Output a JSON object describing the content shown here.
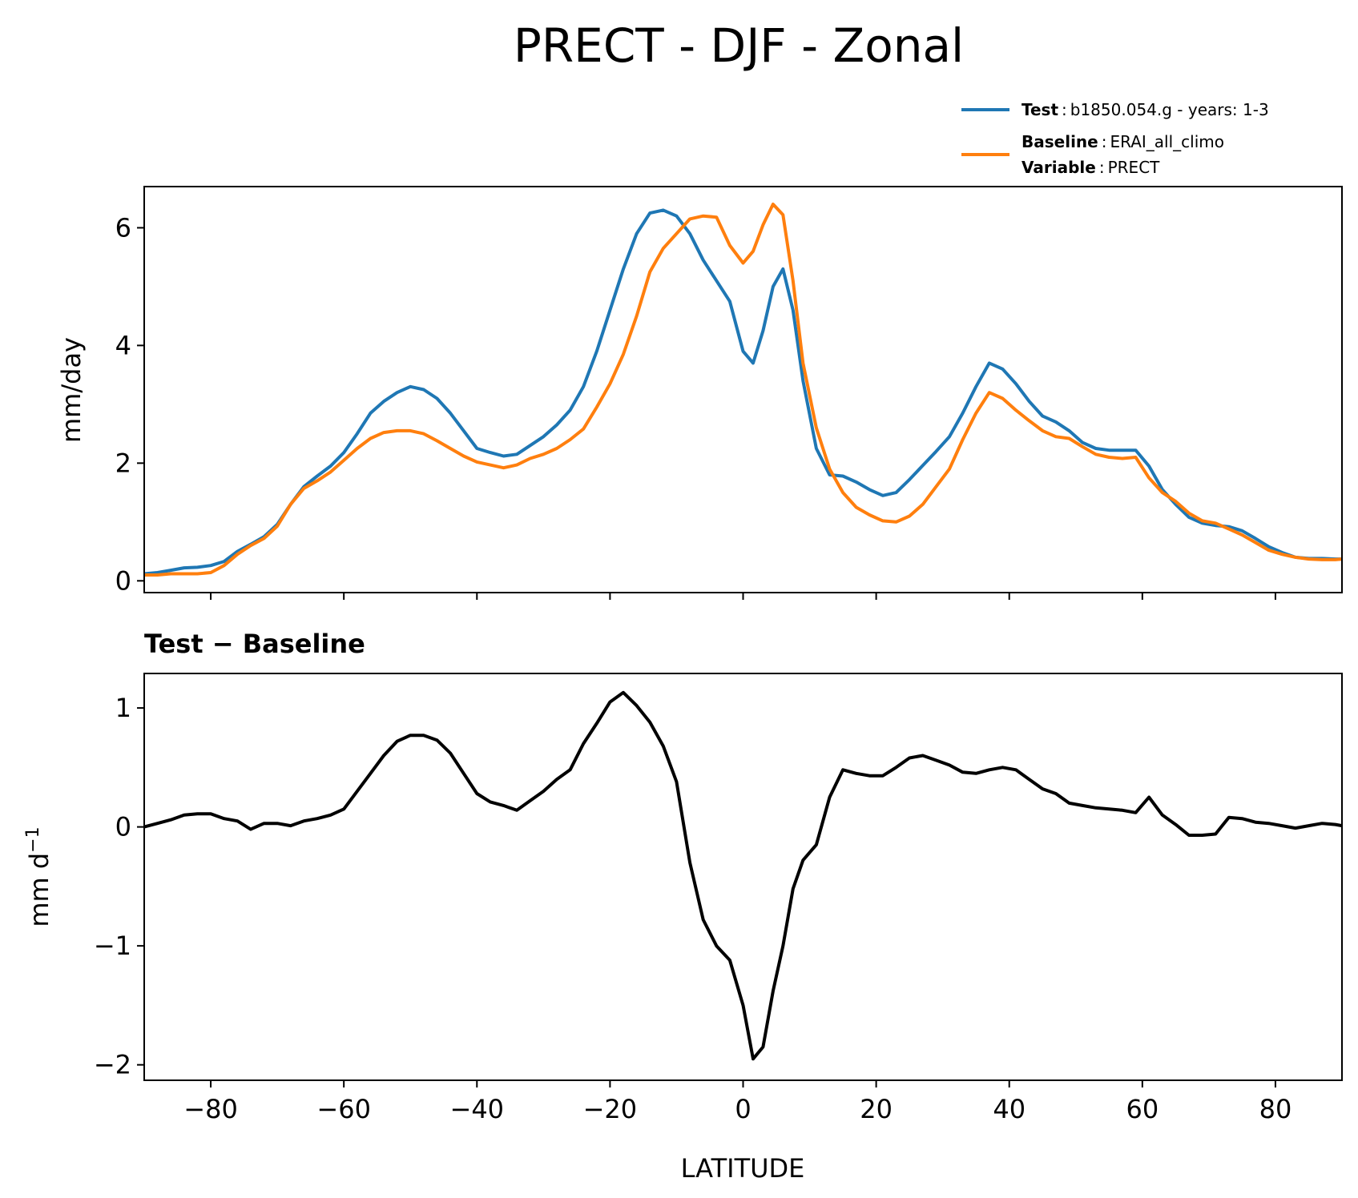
{
  "chart_data": [
    {
      "type": "line",
      "title": "PRECT - DJF - Zonal",
      "xlabel": "",
      "ylabel": "mm/day",
      "xlim": [
        -90,
        90
      ],
      "ylim": [
        -0.2,
        6.7
      ],
      "xticks": [
        -80,
        -60,
        -40,
        -20,
        0,
        20,
        40,
        60,
        80
      ],
      "yticks": [
        0,
        2,
        4,
        6
      ],
      "ytick_labels": [
        "0",
        "2",
        "4",
        "6"
      ],
      "legend": {
        "placement": "upper-right-outside",
        "test": {
          "bold": "Test",
          "sep": ":",
          "text": "b1850.054.g - years: 1-3"
        },
        "baseline": {
          "bold": "Baseline",
          "sep": ":",
          "text": "ERAI_all_climo"
        },
        "variable": {
          "bold": "Variable",
          "sep": ":",
          "text": "PRECT"
        }
      },
      "series": [
        {
          "name": "Test",
          "color": "#1f77b4",
          "x": [
            -90,
            -88,
            -86,
            -84,
            -82,
            -80,
            -78,
            -76,
            -74,
            -72,
            -70,
            -68,
            -66,
            -64,
            -62,
            -60,
            -58,
            -56,
            -54,
            -52,
            -50,
            -48,
            -46,
            -44,
            -42,
            -40,
            -38,
            -36,
            -34,
            -32,
            -30,
            -28,
            -26,
            -24,
            -22,
            -20,
            -18,
            -16,
            -14,
            -12,
            -10,
            -8,
            -6,
            -4,
            -2,
            0,
            1.5,
            3,
            4.5,
            6,
            7.5,
            9,
            11,
            13,
            15,
            17,
            19,
            21,
            23,
            25,
            27,
            29,
            31,
            33,
            35,
            37,
            39,
            41,
            43,
            45,
            47,
            49,
            51,
            53,
            55,
            57,
            59,
            61,
            63,
            65,
            67,
            69,
            71,
            73,
            75,
            77,
            79,
            81,
            83,
            85,
            87,
            89,
            90
          ],
          "values": [
            0.12,
            0.14,
            0.18,
            0.22,
            0.23,
            0.26,
            0.33,
            0.5,
            0.62,
            0.75,
            0.96,
            1.3,
            1.6,
            1.78,
            1.95,
            2.18,
            2.5,
            2.85,
            3.05,
            3.2,
            3.3,
            3.25,
            3.1,
            2.85,
            2.55,
            2.25,
            2.18,
            2.12,
            2.15,
            2.3,
            2.45,
            2.65,
            2.9,
            3.3,
            3.9,
            4.6,
            5.3,
            5.9,
            6.25,
            6.3,
            6.2,
            5.9,
            5.45,
            5.1,
            4.75,
            3.9,
            3.7,
            4.25,
            5.0,
            5.3,
            4.6,
            3.4,
            2.25,
            1.8,
            1.78,
            1.68,
            1.55,
            1.45,
            1.5,
            1.72,
            1.96,
            2.2,
            2.45,
            2.85,
            3.3,
            3.7,
            3.6,
            3.35,
            3.05,
            2.8,
            2.7,
            2.55,
            2.35,
            2.25,
            2.22,
            2.22,
            2.22,
            1.95,
            1.55,
            1.3,
            1.08,
            0.98,
            0.94,
            0.92,
            0.85,
            0.72,
            0.58,
            0.48,
            0.4,
            0.38,
            0.38,
            0.37,
            0.37
          ]
        },
        {
          "name": "Baseline",
          "color": "#ff7f0e",
          "x": [
            -90,
            -88,
            -86,
            -84,
            -82,
            -80,
            -78,
            -76,
            -74,
            -72,
            -70,
            -68,
            -66,
            -64,
            -62,
            -60,
            -58,
            -56,
            -54,
            -52,
            -50,
            -48,
            -46,
            -44,
            -42,
            -40,
            -38,
            -36,
            -34,
            -32,
            -30,
            -28,
            -26,
            -24,
            -22,
            -20,
            -18,
            -16,
            -14,
            -12,
            -10,
            -8,
            -6,
            -4,
            -2,
            0,
            1.5,
            3,
            4.5,
            6,
            7.5,
            9,
            11,
            13,
            15,
            17,
            19,
            21,
            23,
            25,
            27,
            29,
            31,
            33,
            35,
            37,
            39,
            41,
            43,
            45,
            47,
            49,
            51,
            53,
            55,
            57,
            59,
            61,
            63,
            65,
            67,
            69,
            71,
            73,
            75,
            77,
            79,
            81,
            83,
            85,
            87,
            89,
            90
          ],
          "values": [
            0.1,
            0.1,
            0.12,
            0.12,
            0.12,
            0.14,
            0.26,
            0.45,
            0.6,
            0.72,
            0.93,
            1.3,
            1.57,
            1.7,
            1.85,
            2.05,
            2.25,
            2.42,
            2.52,
            2.55,
            2.55,
            2.5,
            2.38,
            2.25,
            2.12,
            2.02,
            1.97,
            1.92,
            1.97,
            2.08,
            2.15,
            2.25,
            2.4,
            2.58,
            2.95,
            3.35,
            3.85,
            4.5,
            5.25,
            5.65,
            5.9,
            6.15,
            6.2,
            6.18,
            5.7,
            5.4,
            5.6,
            6.05,
            6.4,
            6.22,
            5.1,
            3.7,
            2.6,
            1.9,
            1.5,
            1.25,
            1.12,
            1.02,
            1.0,
            1.1,
            1.3,
            1.6,
            1.9,
            2.4,
            2.85,
            3.2,
            3.1,
            2.9,
            2.72,
            2.55,
            2.45,
            2.42,
            2.28,
            2.15,
            2.1,
            2.08,
            2.1,
            1.75,
            1.5,
            1.35,
            1.15,
            1.02,
            0.98,
            0.88,
            0.78,
            0.65,
            0.52,
            0.45,
            0.4,
            0.37,
            0.36,
            0.36,
            0.37
          ]
        }
      ]
    },
    {
      "type": "line",
      "title": "Test − Baseline",
      "xlabel": "LATITUDE",
      "ylabel": "mm d",
      "ylabel_sup": "−1",
      "xlim": [
        -90,
        90
      ],
      "ylim": [
        -2.13,
        1.29
      ],
      "xticks": [
        -80,
        -60,
        -40,
        -20,
        0,
        20,
        40,
        60,
        80
      ],
      "xtick_labels": [
        "−80",
        "−60",
        "−40",
        "−20",
        "0",
        "20",
        "40",
        "60",
        "80"
      ],
      "yticks": [
        1,
        0,
        -1,
        -2
      ],
      "ytick_labels": [
        "1",
        "0",
        "−1",
        "−2"
      ],
      "series": [
        {
          "name": "Test − Baseline",
          "color": "#000000",
          "x": [
            -90,
            -88,
            -86,
            -84,
            -82,
            -80,
            -78,
            -76,
            -74,
            -72,
            -70,
            -68,
            -66,
            -64,
            -62,
            -60,
            -58,
            -56,
            -54,
            -52,
            -50,
            -48,
            -46,
            -44,
            -42,
            -40,
            -38,
            -36,
            -34,
            -32,
            -30,
            -28,
            -26,
            -24,
            -22,
            -20,
            -18,
            -16,
            -14,
            -12,
            -10,
            -8,
            -6,
            -4,
            -2,
            0,
            1.5,
            3,
            4.5,
            6,
            7.5,
            9,
            11,
            13,
            15,
            17,
            19,
            21,
            23,
            25,
            27,
            29,
            31,
            33,
            35,
            37,
            39,
            41,
            43,
            45,
            47,
            49,
            51,
            53,
            55,
            57,
            59,
            61,
            63,
            65,
            67,
            69,
            71,
            73,
            75,
            77,
            79,
            81,
            83,
            85,
            87,
            89,
            90
          ],
          "values": [
            0.0,
            0.03,
            0.06,
            0.1,
            0.11,
            0.11,
            0.07,
            0.05,
            -0.02,
            0.03,
            0.03,
            0.01,
            0.05,
            0.07,
            0.1,
            0.15,
            0.3,
            0.45,
            0.6,
            0.72,
            0.77,
            0.77,
            0.73,
            0.62,
            0.45,
            0.28,
            0.21,
            0.18,
            0.14,
            0.22,
            0.3,
            0.4,
            0.48,
            0.7,
            0.87,
            1.05,
            1.13,
            1.02,
            0.88,
            0.68,
            0.38,
            -0.3,
            -0.78,
            -1.0,
            -1.12,
            -1.5,
            -1.95,
            -1.85,
            -1.38,
            -1.0,
            -0.52,
            -0.28,
            -0.15,
            0.25,
            0.48,
            0.45,
            0.43,
            0.43,
            0.5,
            0.58,
            0.6,
            0.56,
            0.52,
            0.46,
            0.45,
            0.48,
            0.5,
            0.48,
            0.4,
            0.32,
            0.28,
            0.2,
            0.18,
            0.16,
            0.15,
            0.14,
            0.12,
            0.25,
            0.1,
            0.02,
            -0.07,
            -0.07,
            -0.06,
            0.08,
            0.07,
            0.04,
            0.03,
            0.01,
            -0.01,
            0.01,
            0.03,
            0.02,
            0.01
          ]
        }
      ]
    }
  ]
}
